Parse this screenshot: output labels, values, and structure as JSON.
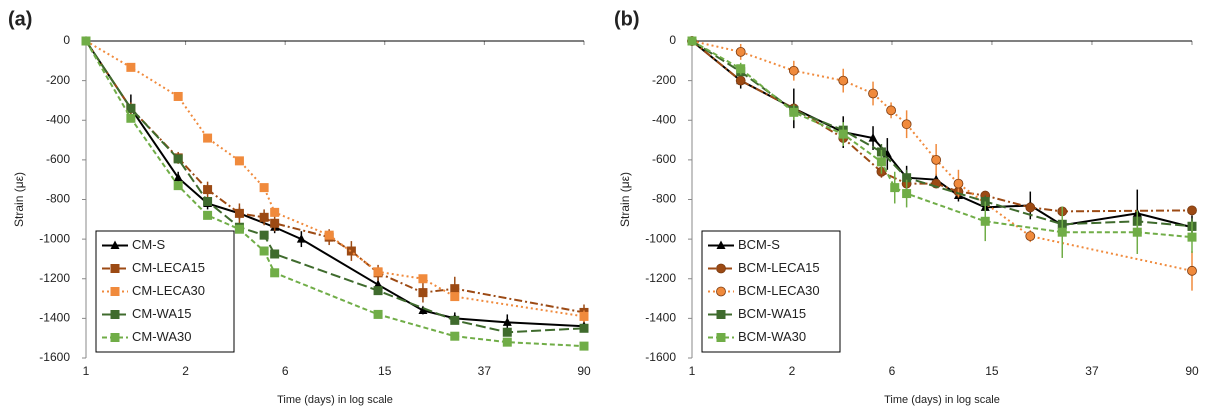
{
  "chart_data": [
    {
      "type": "line",
      "panel_label": "(a)",
      "xlabel": "Time (days) in log scale",
      "ylabel": "Strain (με)",
      "xscale": "log",
      "xlim": [
        1,
        90
      ],
      "xticks": [
        1,
        {
          "value": 2.459,
          "label": "2"
        },
        {
          "value": 6.048,
          "label": "6"
        },
        {
          "value": 14.87,
          "label": "15"
        },
        {
          "value": 36.58,
          "label": "37"
        },
        90
      ],
      "ylim": [
        -1600,
        0
      ],
      "yticks": [
        0,
        -200,
        -400,
        -600,
        -800,
        -1000,
        -1200,
        -1400,
        -1600
      ],
      "legend": "lower left",
      "series": [
        {
          "name": "CM-S",
          "color": "#000000",
          "marker": "triangle",
          "dash": "solid",
          "x": [
            1,
            1.5,
            2.3,
            3,
            4,
            5.5,
            7,
            14,
            21,
            28,
            45,
            90
          ],
          "values": [
            0,
            -340,
            -690,
            -820,
            -870,
            -940,
            -1000,
            -1230,
            -1360,
            -1400,
            -1420,
            -1440
          ],
          "errors": [
            0,
            70,
            30,
            30,
            30,
            30,
            40,
            40,
            20,
            30,
            40,
            30
          ]
        },
        {
          "name": "CM-LECA15",
          "color": "#9c4a14",
          "marker": "square",
          "dash": "dashdot",
          "x": [
            1,
            1.5,
            2.3,
            3,
            4,
            5,
            5.5,
            9,
            11,
            14,
            21,
            28,
            90
          ],
          "values": [
            0,
            -340,
            -590,
            -750,
            -870,
            -890,
            -920,
            -990,
            -1060,
            -1170,
            -1270,
            -1250,
            -1370
          ],
          "errors": [
            0,
            30,
            30,
            40,
            50,
            40,
            40,
            40,
            50,
            40,
            50,
            60,
            40
          ]
        },
        {
          "name": "CM-LECA30",
          "color": "#f08a3c",
          "marker": "square",
          "dash": "dotted",
          "x": [
            1,
            1.5,
            2.3,
            3,
            4,
            5,
            5.5,
            9,
            14,
            21,
            28,
            90
          ],
          "values": [
            0,
            -133,
            -280,
            -490,
            -605,
            -740,
            -865,
            -980,
            -1165,
            -1200,
            -1290,
            -1390
          ],
          "errors": [
            0,
            10,
            10,
            10,
            10,
            10,
            20,
            20,
            20,
            20,
            20,
            30
          ]
        },
        {
          "name": "CM-WA15",
          "color": "#3f6b2d",
          "marker": "square",
          "dash": "longdash",
          "x": [
            1,
            1.5,
            2.3,
            3,
            4,
            5,
            5.5,
            14,
            28,
            45,
            90
          ],
          "values": [
            0,
            -340,
            -595,
            -810,
            -940,
            -980,
            -1075,
            -1260,
            -1410,
            -1470,
            -1450
          ],
          "errors": [
            0,
            20,
            20,
            20,
            20,
            20,
            20,
            20,
            20,
            20,
            20
          ]
        },
        {
          "name": "CM-WA30",
          "color": "#70ad47",
          "marker": "square",
          "dash": "dashed",
          "x": [
            1,
            1.5,
            2.3,
            3,
            4,
            5,
            5.5,
            14,
            28,
            45,
            90
          ],
          "values": [
            0,
            -390,
            -730,
            -880,
            -950,
            -1060,
            -1170,
            -1380,
            -1490,
            -1520,
            -1540
          ],
          "errors": [
            0,
            20,
            20,
            20,
            20,
            20,
            20,
            20,
            20,
            20,
            20
          ]
        }
      ]
    },
    {
      "type": "line",
      "panel_label": "(b)",
      "xlabel": "Time (days) in log scale",
      "ylabel": "Strain (με)",
      "xscale": "log",
      "xlim": [
        1,
        90
      ],
      "xticks": [
        1,
        {
          "value": 2.459,
          "label": "2"
        },
        {
          "value": 6.048,
          "label": "6"
        },
        {
          "value": 14.87,
          "label": "15"
        },
        {
          "value": 36.58,
          "label": "37"
        },
        90
      ],
      "ylim": [
        -1600,
        0
      ],
      "yticks": [
        0,
        -200,
        -400,
        -600,
        -800,
        -1000,
        -1200,
        -1400,
        -1600
      ],
      "legend": "lower left",
      "series": [
        {
          "name": "BCM-S",
          "color": "#000000",
          "marker": "triangle",
          "dash": "solid",
          "x": [
            1,
            1.55,
            2.5,
            3.9,
            5.1,
            5.8,
            6.9,
            9,
            11,
            14,
            21,
            28,
            55,
            90
          ],
          "values": [
            0,
            -200,
            -340,
            -460,
            -490,
            -570,
            -690,
            -700,
            -780,
            -840,
            -830,
            -930,
            -870,
            -940
          ],
          "errors": [
            0,
            40,
            100,
            80,
            60,
            80,
            60,
            30,
            30,
            50,
            70,
            40,
            120,
            60
          ]
        },
        {
          "name": "BCM-LECA15",
          "color": "#9c4a14",
          "marker": "circle",
          "dash": "dashdot",
          "x": [
            1,
            1.55,
            2.5,
            3.9,
            5.5,
            6.9,
            9,
            11,
            14,
            21,
            28,
            90
          ],
          "values": [
            0,
            -200,
            -340,
            -490,
            -660,
            -720,
            -720,
            -760,
            -780,
            -840,
            -860,
            -855
          ],
          "errors": [
            0,
            20,
            20,
            30,
            30,
            30,
            20,
            20,
            20,
            20,
            20,
            20
          ]
        },
        {
          "name": "BCM-LECA30",
          "color": "#f08a3c",
          "marker": "circle",
          "dash": "dotted",
          "x": [
            1,
            1.55,
            2.5,
            3.9,
            5.1,
            6,
            6.9,
            9,
            11,
            21,
            90
          ],
          "values": [
            0,
            -55,
            -150,
            -200,
            -265,
            -350,
            -420,
            -600,
            -720,
            -985,
            -1160
          ],
          "errors": [
            0,
            40,
            50,
            60,
            60,
            40,
            70,
            80,
            70,
            30,
            100
          ]
        },
        {
          "name": "BCM-WA15",
          "color": "#3f6b2d",
          "marker": "square",
          "dash": "longdash",
          "x": [
            1,
            1.55,
            2.5,
            3.9,
            5.5,
            6.9,
            14,
            28,
            55,
            90
          ],
          "values": [
            0,
            -155,
            -350,
            -450,
            -560,
            -690,
            -810,
            -925,
            -910,
            -935
          ],
          "errors": [
            0,
            20,
            30,
            40,
            40,
            40,
            30,
            40,
            40,
            40
          ]
        },
        {
          "name": "BCM-WA30",
          "color": "#70ad47",
          "marker": "square",
          "dash": "dashed",
          "x": [
            1,
            1.55,
            2.5,
            3.9,
            5.5,
            6.2,
            6.9,
            14,
            28,
            55,
            90
          ],
          "values": [
            0,
            -140,
            -360,
            -470,
            -610,
            -740,
            -770,
            -910,
            -965,
            -965,
            -990
          ],
          "errors": [
            0,
            30,
            40,
            60,
            60,
            80,
            70,
            100,
            130,
            110,
            80
          ]
        }
      ]
    }
  ]
}
